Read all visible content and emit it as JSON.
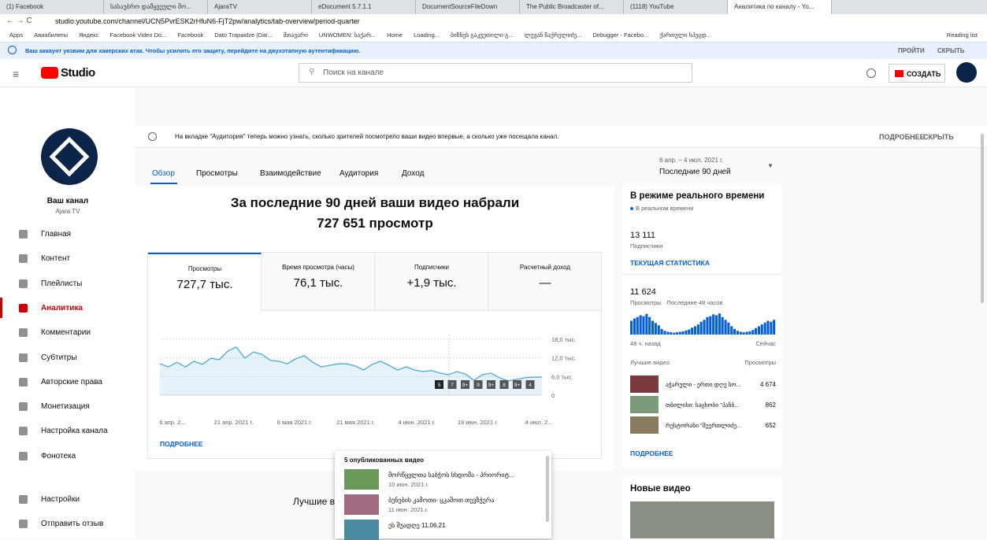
{
  "browser": {
    "tabs": [
      "(1) Facebook",
      "სასაუბრო დამყვეული მო...",
      "AjaraTV",
      "eDocument 5.7.1.1",
      "DocumentSourceFileDown",
      "The Public Broadcaster of...",
      "(1118) YouTube",
      "Аналитика по каналу - Yo..."
    ],
    "url": "studio.youtube.com/channel/UCN5PvrESK2rHfuN6-FjT2pw/analytics/tab-overview/period-quarter",
    "bookmarks": [
      "Apps",
      "Авиабилеты",
      "Яндекс",
      "Facebook Video Do...",
      "Facebook",
      "Dato Trapaidze (Dat...",
      "მთავარი",
      "UNWOMEN: საქარ...",
      "Home",
      "Loading...",
      "ბიზნეს გაკვეთილი-გ...",
      "ლევან წაქრელიძე...",
      "Debugger - Facebo...",
      "ქართული სპეცდ..."
    ],
    "reading_list": "Reading list"
  },
  "warning": {
    "text": "Ваш аккаунт уязвим для хакерских атак. Чтобы усилить его защиту, перейдите на двухэтапную аутентификацию.",
    "actions": [
      "ПРОЙТИ",
      "СКРЫТЬ"
    ]
  },
  "header": {
    "logo": "Studio",
    "search": "Поиск на канале",
    "create": "СОЗДАТЬ"
  },
  "sidebar": {
    "channel_label": "Ваш канал",
    "channel_name": "Ajara TV",
    "menu": [
      "Главная",
      "Контент",
      "Плейлисты",
      "Аналитика",
      "Комментарии",
      "Субтитры",
      "Авторские права",
      "Монетизация",
      "Настройка канала",
      "Фонотека"
    ],
    "active": "Аналитика",
    "bottom": [
      "Настройки",
      "Отправить отзыв"
    ]
  },
  "notice": {
    "text": "На вкладке \"Аудитория\" теперь можно узнать, сколько зрителей посмотрело ваши видео впервые, а сколько уже посещала канал.",
    "more": "ПОДРОБНЕЕ",
    "hide": "СКРЫТЬ"
  },
  "tabs": [
    "Обзор",
    "Просмотры",
    "Взаимодействие",
    "Аудитория",
    "Доход"
  ],
  "date_range": {
    "dates": "6 апр. – 4 июл. 2021 г.",
    "period": "Последние 90 дней"
  },
  "headline": {
    "line1": "За последние 90 дней ваши видео набрали",
    "line2": "727 651 просмотр"
  },
  "metrics": [
    {
      "label": "Просмотры",
      "value": "727,7 тыс."
    },
    {
      "label": "Время просмотра (часы)",
      "value": "76,1 тыс."
    },
    {
      "label": "Подписчики",
      "value": "+1,9 тыс."
    },
    {
      "label": "Расчетный доход",
      "value": "—"
    }
  ],
  "chart": {
    "type": "line",
    "color": "#4fa8d5",
    "values": [
      10100,
      9100,
      10600,
      9100,
      10900,
      9900,
      11900,
      11400,
      14200,
      15500,
      11900,
      13900,
      13200,
      11200,
      10900,
      10100,
      11700,
      12700,
      10600,
      9100,
      9600,
      10100,
      10100,
      9400,
      8100,
      9900,
      10900,
      9600,
      8100,
      9100,
      8100,
      7600,
      7900,
      7100,
      6600,
      7600,
      6800,
      4800,
      6600,
      7100,
      5600,
      4600,
      5100,
      5600,
      5800,
      5800
    ],
    "ylim": [
      0,
      18000
    ],
    "yticks": [
      {
        "value": 0,
        "label": "0"
      },
      {
        "value": 6000,
        "label": "6,0 тыс."
      },
      {
        "value": 12000,
        "label": "12,0 тыс."
      },
      {
        "value": 18000,
        "label": "18,0 тыс."
      }
    ],
    "x_labels": [
      "6 апр. 2...",
      "21 апр. 2021 г.",
      "6 мая 2021 г.",
      "21 мая 2021 г.",
      "4 июн. 2021 г.",
      "19 июн. 2021 г.",
      "4 июл. 2..."
    ],
    "video_markers": [
      "5",
      "7",
      "9+",
      "9",
      "9+",
      "8",
      "9+",
      "4"
    ]
  },
  "overview_more": "ПОДРОБНЕЕ",
  "popup": {
    "title": "5 опубликованных видео",
    "videos": [
      {
        "title": "მორწყვლთა საბჭოს სხდომა - პრიორიტ...",
        "date": "10 июн. 2021 г."
      },
      {
        "title": "ბუნების კამოთი- ცკაშოთ თევზჭერა",
        "date": "11 июн. 2021 г."
      },
      {
        "title": "ეს შუადღე 11.06.21",
        "date": ""
      }
    ]
  },
  "top_videos_heading": "Лучшие в",
  "realtime": {
    "title": "В режиме реального времени",
    "subtitle": "В реальном времени",
    "subscribers": {
      "value": "13 111",
      "label": "Подписчики"
    },
    "live_link": "ТЕКУЩАЯ СТАТИСТИКА",
    "views": {
      "value": "11 624",
      "label": "Просмотры · Последние 48 часов"
    },
    "bars": [
      300,
      350,
      380,
      420,
      400,
      450,
      380,
      300,
      250,
      200,
      120,
      80,
      60,
      50,
      40,
      50,
      60,
      70,
      90,
      110,
      150,
      180,
      220,
      280,
      320,
      380,
      400,
      440,
      420,
      460,
      380,
      320,
      260,
      180,
      120,
      80,
      60,
      50,
      60,
      70,
      100,
      140,
      180,
      220,
      260,
      300,
      280,
      320
    ],
    "bar_color": "#065fd4",
    "bars_start": "48 ч. назад",
    "bars_end": "Сейчас",
    "top_label": "Лучшие видео",
    "top_metric": "Просмотры",
    "top_videos": [
      {
        "title": "აჭარული - ერთი დღე სო...",
        "views": "4 674"
      },
      {
        "title": "თბილისი: საცხობი \"პანბ...",
        "views": "862"
      },
      {
        "title": "რესტორანი \"შეერთლიძე...",
        "views": "652"
      }
    ],
    "more": "ПОДРОБНЕЕ"
  },
  "new_videos": "Новые видео"
}
